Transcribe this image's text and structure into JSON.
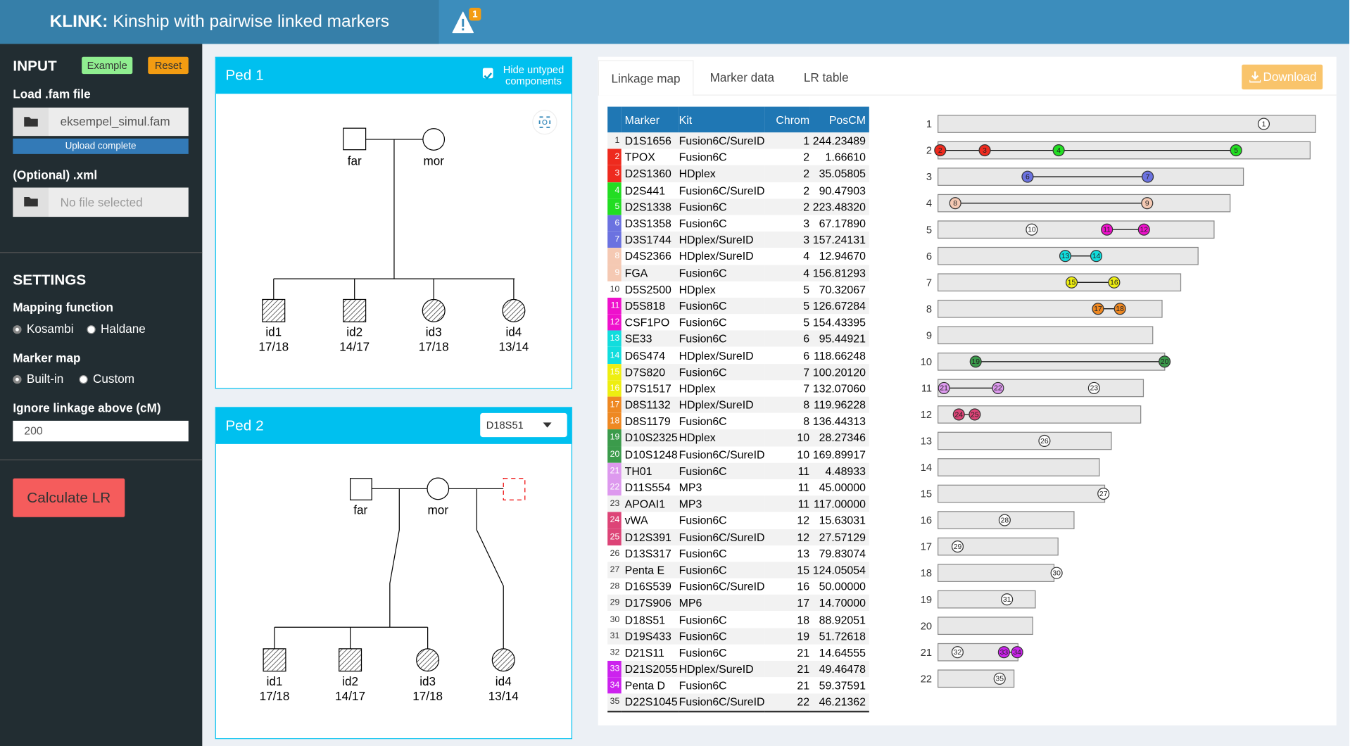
{
  "header": {
    "title_bold": "KLINK:",
    "title": "Kinship with pairwise linked markers",
    "alert_count": "1"
  },
  "sidebar": {
    "input_heading": "INPUT",
    "example_button": "Example",
    "reset_button": "Reset",
    "fam_label": "Load .fam file",
    "fam_file": "eksempel_simul.fam",
    "fam_status": "Upload complete",
    "xml_label": "(Optional) .xml",
    "xml_file": "No file selected",
    "settings_heading": "SETTINGS",
    "mapping_label": "Mapping function",
    "mapping_options": [
      "Kosambi",
      "Haldane"
    ],
    "marker_map_label": "Marker map",
    "marker_map_options": [
      "Built-in",
      "Custom"
    ],
    "ignore_label": "Ignore linkage above (cM)",
    "ignore_value": "200",
    "calculate_button": "Calculate LR"
  },
  "ped1": {
    "title": "Ped 1",
    "hide_untyped": "Hide untyped components",
    "individuals": [
      {
        "id": "far"
      },
      {
        "id": "mor"
      },
      {
        "id": "id1",
        "genotype": "17/18"
      },
      {
        "id": "id2",
        "genotype": "14/17"
      },
      {
        "id": "id3",
        "genotype": "17/18"
      },
      {
        "id": "id4",
        "genotype": "13/14"
      }
    ]
  },
  "ped2": {
    "title": "Ped 2",
    "marker_select": "D18S51",
    "individuals": [
      {
        "id": "far"
      },
      {
        "id": "mor"
      },
      {
        "id": "id1",
        "genotype": "17/18"
      },
      {
        "id": "id2",
        "genotype": "14/17"
      },
      {
        "id": "id3",
        "genotype": "17/18"
      },
      {
        "id": "id4",
        "genotype": "13/14"
      }
    ]
  },
  "tabs": [
    "Linkage map",
    "Marker data",
    "LR table"
  ],
  "download_button": "Download",
  "table": {
    "columns": [
      "Marker",
      "Kit",
      "Chrom",
      "PosCM"
    ],
    "rows": [
      {
        "index": "1",
        "marker": "D1S1656",
        "kit": "Fusion6C/SureID",
        "chrom": "1",
        "pos": "244.23489",
        "color": null
      },
      {
        "index": "2",
        "marker": "TPOX",
        "kit": "Fusion6C",
        "chrom": "2",
        "pos": "1.66610",
        "color": "#ee2a1e"
      },
      {
        "index": "3",
        "marker": "D2S1360",
        "kit": "HDplex",
        "chrom": "2",
        "pos": "35.05805",
        "color": "#ee2a1e"
      },
      {
        "index": "4",
        "marker": "D2S441",
        "kit": "Fusion6C/SureID",
        "chrom": "2",
        "pos": "90.47903",
        "color": "#22dd22"
      },
      {
        "index": "5",
        "marker": "D2S1338",
        "kit": "Fusion6C",
        "chrom": "2",
        "pos": "223.48320",
        "color": "#22dd22"
      },
      {
        "index": "6",
        "marker": "D3S1358",
        "kit": "Fusion6C",
        "chrom": "3",
        "pos": "67.17890",
        "color": "#6b72e0"
      },
      {
        "index": "7",
        "marker": "D3S1744",
        "kit": "HDplex/SureID",
        "chrom": "3",
        "pos": "157.24131",
        "color": "#6b72e0"
      },
      {
        "index": "8",
        "marker": "D4S2366",
        "kit": "HDplex/SureID",
        "chrom": "4",
        "pos": "12.94670",
        "color": "#f5c9b3"
      },
      {
        "index": "9",
        "marker": "FGA",
        "kit": "Fusion6C",
        "chrom": "4",
        "pos": "156.81293",
        "color": "#f5c9b3"
      },
      {
        "index": "10",
        "marker": "D5S2500",
        "kit": "HDplex",
        "chrom": "5",
        "pos": "70.32067",
        "color": null
      },
      {
        "index": "11",
        "marker": "D5S818",
        "kit": "Fusion6C",
        "chrom": "5",
        "pos": "126.67284",
        "color": "#ee11cc"
      },
      {
        "index": "12",
        "marker": "CSF1PO",
        "kit": "Fusion6C",
        "chrom": "5",
        "pos": "154.43395",
        "color": "#ee11cc"
      },
      {
        "index": "13",
        "marker": "SE33",
        "kit": "Fusion6C",
        "chrom": "6",
        "pos": "95.44921",
        "color": "#11dddd"
      },
      {
        "index": "14",
        "marker": "D6S474",
        "kit": "HDplex/SureID",
        "chrom": "6",
        "pos": "118.66248",
        "color": "#11dddd"
      },
      {
        "index": "15",
        "marker": "D7S820",
        "kit": "Fusion6C",
        "chrom": "7",
        "pos": "100.20120",
        "color": "#eeee11"
      },
      {
        "index": "16",
        "marker": "D7S1517",
        "kit": "HDplex",
        "chrom": "7",
        "pos": "132.07060",
        "color": "#eeee11"
      },
      {
        "index": "17",
        "marker": "D8S1132",
        "kit": "HDplex/SureID",
        "chrom": "8",
        "pos": "119.96228",
        "color": "#ee8822"
      },
      {
        "index": "18",
        "marker": "D8S1179",
        "kit": "Fusion6C",
        "chrom": "8",
        "pos": "136.44313",
        "color": "#ee8822"
      },
      {
        "index": "19",
        "marker": "D10S2325",
        "kit": "HDplex",
        "chrom": "10",
        "pos": "28.27346",
        "color": "#3b9b4b"
      },
      {
        "index": "20",
        "marker": "D10S1248",
        "kit": "Fusion6C/SureID",
        "chrom": "10",
        "pos": "169.89917",
        "color": "#3b9b4b"
      },
      {
        "index": "21",
        "marker": "TH01",
        "kit": "Fusion6C",
        "chrom": "11",
        "pos": "4.48933",
        "color": "#dd99ee"
      },
      {
        "index": "22",
        "marker": "D11S554",
        "kit": "MP3",
        "chrom": "11",
        "pos": "45.00000",
        "color": "#dd99ee"
      },
      {
        "index": "23",
        "marker": "APOAI1",
        "kit": "MP3",
        "chrom": "11",
        "pos": "117.00000",
        "color": null
      },
      {
        "index": "24",
        "marker": "vWA",
        "kit": "Fusion6C",
        "chrom": "12",
        "pos": "15.63031",
        "color": "#dd4477"
      },
      {
        "index": "25",
        "marker": "D12S391",
        "kit": "Fusion6C/SureID",
        "chrom": "12",
        "pos": "27.57129",
        "color": "#dd4477"
      },
      {
        "index": "26",
        "marker": "D13S317",
        "kit": "Fusion6C",
        "chrom": "13",
        "pos": "79.83074",
        "color": null
      },
      {
        "index": "27",
        "marker": "Penta E",
        "kit": "Fusion6C",
        "chrom": "15",
        "pos": "124.05054",
        "color": null
      },
      {
        "index": "28",
        "marker": "D16S539",
        "kit": "Fusion6C/SureID",
        "chrom": "16",
        "pos": "50.00000",
        "color": null
      },
      {
        "index": "29",
        "marker": "D17S906",
        "kit": "MP6",
        "chrom": "17",
        "pos": "14.70000",
        "color": null
      },
      {
        "index": "30",
        "marker": "D18S51",
        "kit": "Fusion6C",
        "chrom": "18",
        "pos": "88.92051",
        "color": null
      },
      {
        "index": "31",
        "marker": "D19S433",
        "kit": "Fusion6C",
        "chrom": "19",
        "pos": "51.72618",
        "color": null
      },
      {
        "index": "32",
        "marker": "D21S11",
        "kit": "Fusion6C",
        "chrom": "21",
        "pos": "14.64555",
        "color": null
      },
      {
        "index": "33",
        "marker": "D21S2055",
        "kit": "HDplex/SureID",
        "chrom": "21",
        "pos": "49.46478",
        "color": "#cc22ee"
      },
      {
        "index": "34",
        "marker": "Penta D",
        "kit": "Fusion6C",
        "chrom": "21",
        "pos": "59.37591",
        "color": "#cc22ee"
      },
      {
        "index": "35",
        "marker": "D22S1045",
        "kit": "Fusion6C/SureID",
        "chrom": "22",
        "pos": "46.21362",
        "color": null
      }
    ]
  },
  "linkage_map": {
    "chromosomes": [
      {
        "label": "1",
        "length": 283
      },
      {
        "label": "2",
        "length": 279
      },
      {
        "label": "3",
        "length": 229
      },
      {
        "label": "4",
        "length": 219
      },
      {
        "label": "5",
        "length": 207
      },
      {
        "label": "6",
        "length": 195
      },
      {
        "label": "7",
        "length": 182
      },
      {
        "label": "8",
        "length": 168
      },
      {
        "label": "9",
        "length": 161
      },
      {
        "label": "10",
        "length": 170
      },
      {
        "label": "11",
        "length": 154
      },
      {
        "label": "12",
        "length": 152
      },
      {
        "label": "13",
        "length": 130
      },
      {
        "label": "14",
        "length": 121
      },
      {
        "label": "15",
        "length": 125
      },
      {
        "label": "16",
        "length": 102
      },
      {
        "label": "17",
        "length": 90
      },
      {
        "label": "18",
        "length": 87
      },
      {
        "label": "19",
        "length": 73
      },
      {
        "label": "20",
        "length": 71
      },
      {
        "label": "21",
        "length": 60
      },
      {
        "label": "22",
        "length": 57
      }
    ]
  }
}
